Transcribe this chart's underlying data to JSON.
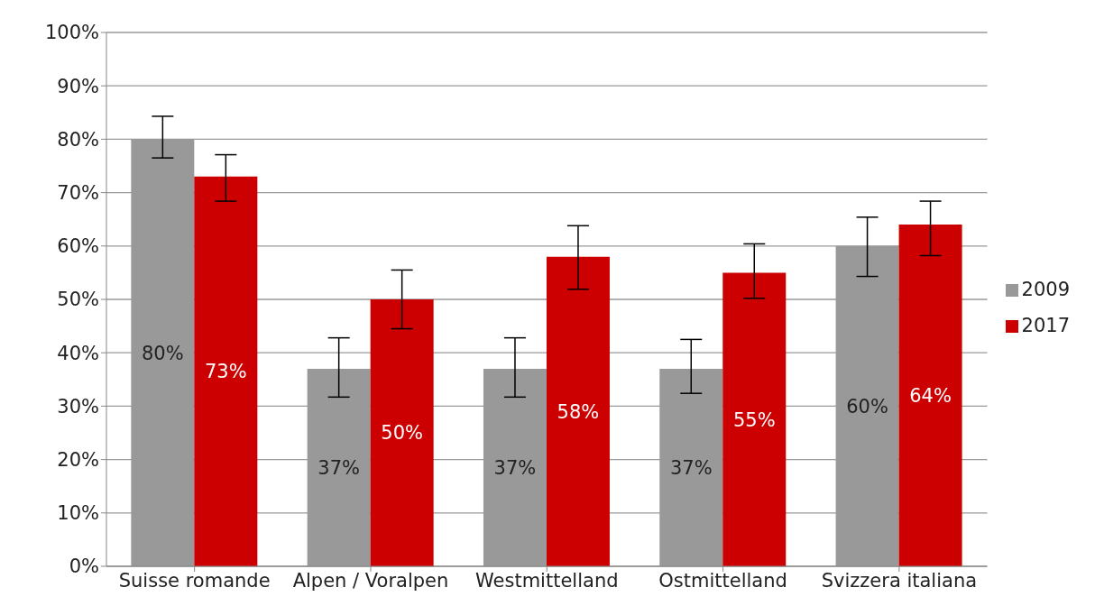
{
  "chart_data": {
    "type": "bar",
    "categories": [
      "Suisse romande",
      "Alpen / Voralpen",
      "Westmittelland",
      "Ostmittelland",
      "Svizzera italiana"
    ],
    "series": [
      {
        "name": "2009",
        "color": "#999999",
        "values": [
          80,
          37,
          37,
          37,
          60
        ],
        "errors": [
          [
            76.5,
            84.3
          ],
          [
            31.7,
            42.8
          ],
          [
            31.7,
            42.8
          ],
          [
            32.4,
            42.5
          ],
          [
            54.3,
            65.4
          ]
        ],
        "value_labels": [
          "80%",
          "37%",
          "37%",
          "37%",
          "60%"
        ]
      },
      {
        "name": "2017",
        "color": "#cc0000",
        "values": [
          73,
          50,
          58,
          55,
          64
        ],
        "errors": [
          [
            68.4,
            77.1
          ],
          [
            44.5,
            55.5
          ],
          [
            51.9,
            63.8
          ],
          [
            50.2,
            60.4
          ],
          [
            58.2,
            68.4
          ]
        ],
        "value_labels": [
          "73%",
          "50%",
          "58%",
          "55%",
          "64%"
        ]
      }
    ],
    "ylim": [
      0,
      100
    ],
    "yticks": [
      {
        "value": 0,
        "label": "0%"
      },
      {
        "value": 10,
        "label": "10%"
      },
      {
        "value": 20,
        "label": "20%"
      },
      {
        "value": 30,
        "label": "30%"
      },
      {
        "value": 40,
        "label": "40%"
      },
      {
        "value": 50,
        "label": "50%"
      },
      {
        "value": 60,
        "label": "60%"
      },
      {
        "value": 70,
        "label": "70%"
      },
      {
        "value": 80,
        "label": "80%"
      },
      {
        "value": 90,
        "label": "90%"
      },
      {
        "value": 100,
        "label": "100%"
      }
    ],
    "grid": "y",
    "legend": "right"
  }
}
